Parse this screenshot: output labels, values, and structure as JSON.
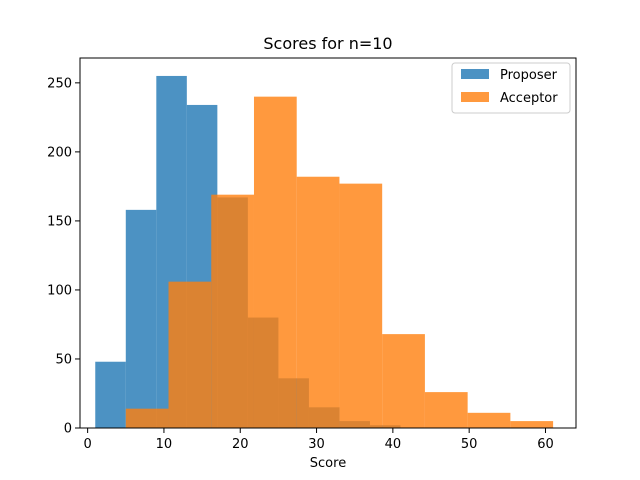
{
  "chart_data": {
    "type": "histogram",
    "title": "Scores for n=10",
    "xlabel": "Score",
    "ylabel": "",
    "xlim": [
      -1,
      64
    ],
    "ylim": [
      0,
      268
    ],
    "xticks": [
      0,
      10,
      20,
      30,
      40,
      50,
      60
    ],
    "yticks": [
      0,
      50,
      100,
      150,
      200,
      250
    ],
    "legend_position": "top-right",
    "grid": false,
    "series": [
      {
        "name": "Proposer",
        "color": "#1f77b4",
        "bins": [
          {
            "x0": 1.0,
            "x1": 5.0,
            "count": 48
          },
          {
            "x0": 5.0,
            "x1": 9.0,
            "count": 158
          },
          {
            "x0": 9.0,
            "x1": 13.0,
            "count": 255
          },
          {
            "x0": 13.0,
            "x1": 17.0,
            "count": 234
          },
          {
            "x0": 17.0,
            "x1": 21.0,
            "count": 167
          },
          {
            "x0": 21.0,
            "x1": 25.0,
            "count": 80
          },
          {
            "x0": 25.0,
            "x1": 29.0,
            "count": 36
          },
          {
            "x0": 29.0,
            "x1": 33.0,
            "count": 15
          },
          {
            "x0": 33.0,
            "x1": 37.0,
            "count": 5
          },
          {
            "x0": 37.0,
            "x1": 41.0,
            "count": 2
          }
        ]
      },
      {
        "name": "Acceptor",
        "color": "#ff7f0e",
        "bins": [
          {
            "x0": 5.0,
            "x1": 10.6,
            "count": 14
          },
          {
            "x0": 10.6,
            "x1": 16.2,
            "count": 106
          },
          {
            "x0": 16.2,
            "x1": 21.8,
            "count": 169
          },
          {
            "x0": 21.8,
            "x1": 27.4,
            "count": 240
          },
          {
            "x0": 27.4,
            "x1": 33.0,
            "count": 182
          },
          {
            "x0": 33.0,
            "x1": 38.6,
            "count": 177
          },
          {
            "x0": 38.6,
            "x1": 44.2,
            "count": 68
          },
          {
            "x0": 44.2,
            "x1": 49.8,
            "count": 26
          },
          {
            "x0": 49.8,
            "x1": 55.4,
            "count": 11
          },
          {
            "x0": 55.4,
            "x1": 61.0,
            "count": 5
          }
        ]
      }
    ]
  }
}
